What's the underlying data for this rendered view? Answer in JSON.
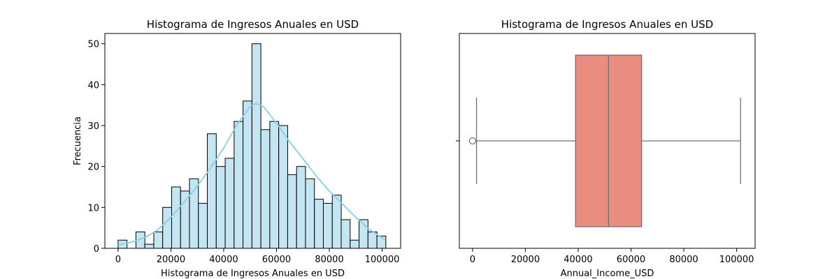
{
  "chart_data": [
    {
      "type": "bar",
      "title": "Histograma de Ingresos Anuales en USD",
      "xlabel": "Histograma de Ingresos Anuales en USD",
      "ylabel": "Frecuencia",
      "xlim": [
        -5000,
        107000
      ],
      "ylim": [
        0,
        52.5
      ],
      "x_ticks": [
        0,
        20000,
        40000,
        60000,
        80000,
        100000
      ],
      "y_ticks": [
        0,
        10,
        20,
        30,
        40,
        50
      ],
      "bin_start": 0,
      "bin_width": 3380,
      "counts": [
        2,
        0,
        4,
        1,
        4,
        10,
        15,
        14,
        17,
        11,
        28,
        20,
        22,
        31,
        36,
        50,
        29,
        31,
        30,
        18,
        20,
        17,
        12,
        11,
        13,
        7,
        2,
        7,
        4,
        3
      ],
      "kde": {
        "x": [
          0,
          5000,
          10000,
          15000,
          20000,
          25000,
          30000,
          35000,
          40000,
          45000,
          50000,
          52000,
          55000,
          60000,
          65000,
          70000,
          75000,
          80000,
          85000,
          90000,
          95000,
          101000
        ],
        "y": [
          0.8,
          1.5,
          2.6,
          4.5,
          7.6,
          11.3,
          15.2,
          19.6,
          24.5,
          30.2,
          34.6,
          35.4,
          34.7,
          30.6,
          26.0,
          21.9,
          17.7,
          14.0,
          10.8,
          7.6,
          4.7,
          2.1
        ]
      },
      "bar_color": "#c4e5f2",
      "line_color": "#87ceeb"
    },
    {
      "type": "boxplot",
      "title": "Histograma de Ingresos Anuales en USD",
      "xlabel": "Annual_Income_USD",
      "xlim": [
        -5000,
        107000
      ],
      "x_ticks": [
        0,
        20000,
        40000,
        60000,
        80000,
        100000
      ],
      "whisker_low": 1500,
      "q1": 39000,
      "median": 51500,
      "q3": 64000,
      "whisker_high": 101500,
      "outliers": [
        0
      ],
      "box_color": "#e98d81",
      "line_color": "#707070"
    }
  ]
}
